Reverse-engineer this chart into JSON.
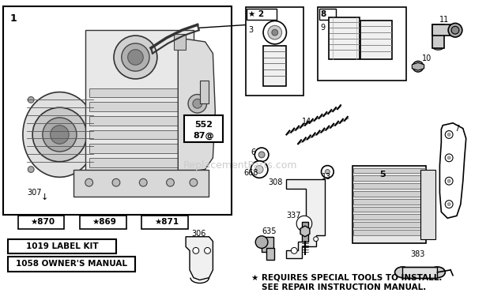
{
  "bg_color": "#ffffff",
  "lc": "#000000",
  "gray1": "#cccccc",
  "gray2": "#aaaaaa",
  "gray3": "#888888",
  "gray4": "#555555",
  "gray5": "#333333",
  "watermark": "ReplacementParts.com",
  "label_kit": "1019 LABEL KIT",
  "owners_manual": "1058 OWNER'S MANUAL",
  "star_note_1": "★ REQUIRES SPECIAL TOOLS TO INSTALL.",
  "star_note_2": "SEE REPAIR INSTRUCTION MANUAL."
}
